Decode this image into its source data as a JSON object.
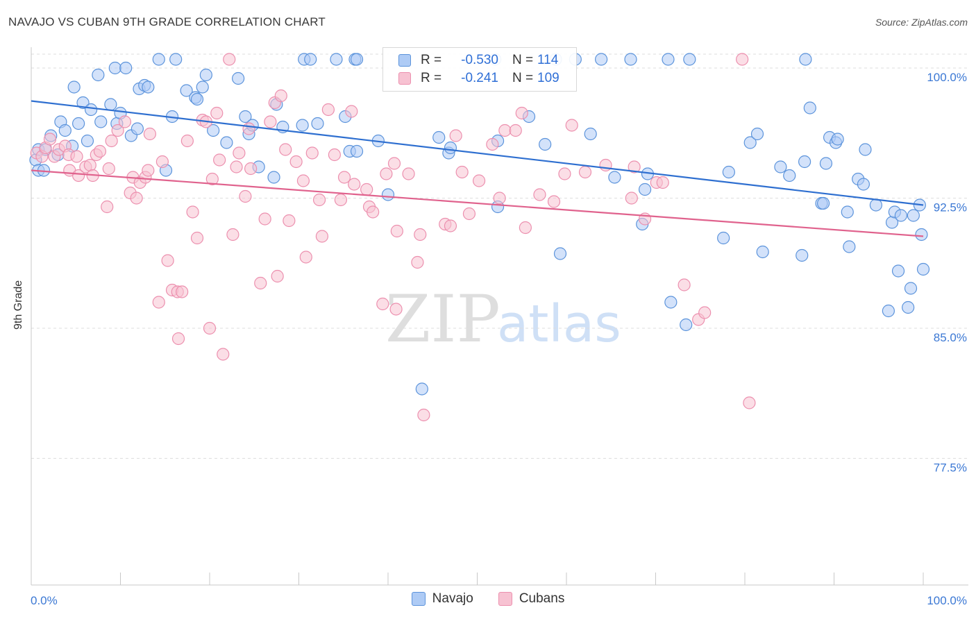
{
  "title": "NAVAJO VS CUBAN 9TH GRADE CORRELATION CHART",
  "source": "Source: ZipAtlas.com",
  "watermark": {
    "zip": "ZIP",
    "atlas": "atlas"
  },
  "colors": {
    "navajo_fill": "#aecbf5",
    "navajo_stroke": "#5b93db",
    "navajo_line": "#2e6fd0",
    "cubans_fill": "#f7c2d2",
    "cubans_stroke": "#ec8fae",
    "cubans_line": "#e0628d",
    "tick_text": "#3b78d4",
    "grid": "#dddddd"
  },
  "legend": {
    "rows": [
      {
        "r_label": "R =",
        "r_value": "-0.530",
        "n_label": "N =",
        "n_value": "114"
      },
      {
        "r_label": "R =",
        "r_value": "-0.241",
        "n_label": "N =",
        "n_value": "109"
      }
    ],
    "bottom": [
      {
        "name": "Navajo"
      },
      {
        "name": "Cubans"
      }
    ]
  },
  "chart_data": {
    "type": "scatter",
    "title": "NAVAJO VS CUBAN 9TH GRADE CORRELATION CHART",
    "xlabel": "",
    "ylabel": "9th Grade",
    "xlim": [
      0,
      100
    ],
    "ylim": [
      70.2,
      101.2
    ],
    "x_tick_labels": [
      "0.0%",
      "100.0%"
    ],
    "y_ticks": [
      100.0,
      92.5,
      85.0,
      77.5
    ],
    "y_tick_labels": [
      "100.0%",
      "92.5%",
      "85.0%",
      "77.5%"
    ],
    "grid": true,
    "series": [
      {
        "name": "Navajo",
        "trend": {
          "x": [
            0,
            100
          ],
          "y": [
            98.1,
            92.1
          ]
        },
        "points": [
          [
            0.5,
            94.7
          ],
          [
            0.8,
            95.3
          ],
          [
            0.8,
            94.1
          ],
          [
            1.4,
            94.1
          ],
          [
            1.6,
            95.3
          ],
          [
            2.2,
            96.1
          ],
          [
            3.0,
            95.0
          ],
          [
            3.3,
            96.9
          ],
          [
            3.8,
            96.4
          ],
          [
            4.6,
            95.5
          ],
          [
            4.8,
            98.9
          ],
          [
            5.3,
            96.8
          ],
          [
            5.8,
            98.0
          ],
          [
            6.3,
            95.8
          ],
          [
            6.7,
            97.6
          ],
          [
            7.5,
            99.6
          ],
          [
            7.8,
            96.9
          ],
          [
            8.9,
            97.9
          ],
          [
            9.4,
            100.0
          ],
          [
            9.6,
            96.8
          ],
          [
            10.0,
            97.4
          ],
          [
            10.6,
            100.0
          ],
          [
            11.2,
            96.1
          ],
          [
            11.9,
            96.5
          ],
          [
            12.1,
            98.8
          ],
          [
            12.7,
            99.0
          ],
          [
            13.1,
            98.9
          ],
          [
            14.3,
            100.5
          ],
          [
            15.1,
            94.1
          ],
          [
            15.8,
            97.2
          ],
          [
            16.2,
            100.5
          ],
          [
            17.4,
            98.7
          ],
          [
            18.4,
            98.3
          ],
          [
            18.6,
            98.2
          ],
          [
            19.2,
            98.9
          ],
          [
            19.6,
            99.6
          ],
          [
            20.4,
            96.4
          ],
          [
            21.9,
            95.7
          ],
          [
            23.2,
            99.4
          ],
          [
            24.0,
            97.2
          ],
          [
            24.4,
            96.2
          ],
          [
            24.8,
            96.7
          ],
          [
            25.5,
            94.3
          ],
          [
            27.2,
            93.7
          ],
          [
            27.5,
            97.9
          ],
          [
            28.2,
            96.6
          ],
          [
            30.4,
            96.7
          ],
          [
            30.6,
            100.5
          ],
          [
            31.3,
            100.5
          ],
          [
            32.1,
            96.8
          ],
          [
            34.2,
            100.5
          ],
          [
            35.2,
            97.2
          ],
          [
            35.7,
            95.2
          ],
          [
            36.3,
            100.5
          ],
          [
            36.5,
            100.5
          ],
          [
            36.5,
            95.2
          ],
          [
            38.9,
            95.8
          ],
          [
            40.0,
            92.7
          ],
          [
            43.8,
            81.5
          ],
          [
            45.7,
            96.0
          ],
          [
            46.8,
            95.1
          ],
          [
            47.0,
            95.4
          ],
          [
            52.0,
            100.5
          ],
          [
            52.3,
            92.0
          ],
          [
            52.3,
            95.8
          ],
          [
            55.8,
            97.2
          ],
          [
            57.6,
            95.6
          ],
          [
            58.8,
            100.5
          ],
          [
            59.3,
            89.3
          ],
          [
            61.0,
            100.5
          ],
          [
            62.7,
            96.2
          ],
          [
            63.9,
            100.5
          ],
          [
            65.4,
            93.7
          ],
          [
            67.2,
            100.5
          ],
          [
            68.5,
            91.0
          ],
          [
            68.8,
            93.0
          ],
          [
            69.1,
            93.9
          ],
          [
            71.4,
            100.5
          ],
          [
            71.7,
            86.5
          ],
          [
            73.4,
            85.2
          ],
          [
            73.8,
            100.5
          ],
          [
            77.6,
            90.2
          ],
          [
            78.2,
            94.0
          ],
          [
            80.6,
            95.7
          ],
          [
            81.4,
            96.2
          ],
          [
            82.0,
            89.4
          ],
          [
            84.0,
            94.3
          ],
          [
            85.0,
            93.8
          ],
          [
            86.4,
            89.2
          ],
          [
            86.7,
            94.6
          ],
          [
            86.8,
            100.5
          ],
          [
            87.3,
            97.7
          ],
          [
            88.6,
            92.2
          ],
          [
            88.8,
            92.2
          ],
          [
            89.1,
            94.5
          ],
          [
            89.5,
            96.0
          ],
          [
            90.2,
            95.7
          ],
          [
            90.4,
            95.9
          ],
          [
            91.5,
            91.7
          ],
          [
            91.7,
            89.7
          ],
          [
            92.7,
            93.6
          ],
          [
            93.3,
            93.3
          ],
          [
            93.5,
            95.3
          ],
          [
            94.7,
            92.1
          ],
          [
            96.1,
            86.0
          ],
          [
            96.5,
            91.1
          ],
          [
            96.8,
            91.7
          ],
          [
            97.2,
            88.3
          ],
          [
            97.5,
            91.5
          ],
          [
            98.3,
            86.2
          ],
          [
            98.6,
            87.3
          ],
          [
            98.9,
            91.5
          ],
          [
            99.6,
            92.1
          ],
          [
            99.8,
            90.4
          ],
          [
            100.0,
            88.4
          ]
        ]
      },
      {
        "name": "Cubans",
        "trend": {
          "x": [
            0,
            100
          ],
          "y": [
            94.1,
            90.3
          ]
        },
        "points": [
          [
            0.6,
            95.1
          ],
          [
            1.2,
            94.9
          ],
          [
            1.6,
            95.4
          ],
          [
            2.1,
            95.9
          ],
          [
            2.6,
            94.9
          ],
          [
            3.1,
            95.3
          ],
          [
            3.8,
            95.5
          ],
          [
            4.2,
            95.0
          ],
          [
            4.3,
            94.1
          ],
          [
            5.1,
            94.9
          ],
          [
            5.3,
            93.8
          ],
          [
            6.1,
            94.3
          ],
          [
            6.6,
            94.4
          ],
          [
            6.9,
            93.8
          ],
          [
            7.3,
            95.0
          ],
          [
            7.7,
            95.2
          ],
          [
            8.5,
            92.0
          ],
          [
            8.7,
            94.2
          ],
          [
            9.0,
            95.8
          ],
          [
            9.7,
            96.4
          ],
          [
            10.5,
            96.9
          ],
          [
            11.1,
            92.8
          ],
          [
            11.4,
            93.7
          ],
          [
            11.8,
            92.5
          ],
          [
            12.2,
            93.4
          ],
          [
            12.8,
            93.7
          ],
          [
            13.1,
            94.1
          ],
          [
            13.3,
            96.2
          ],
          [
            14.3,
            86.5
          ],
          [
            14.7,
            94.6
          ],
          [
            15.3,
            88.9
          ],
          [
            15.8,
            87.2
          ],
          [
            16.4,
            87.1
          ],
          [
            16.5,
            84.4
          ],
          [
            16.9,
            87.1
          ],
          [
            17.5,
            95.8
          ],
          [
            18.1,
            91.7
          ],
          [
            18.6,
            90.2
          ],
          [
            19.2,
            97.0
          ],
          [
            19.6,
            96.9
          ],
          [
            20.0,
            85.0
          ],
          [
            20.3,
            93.6
          ],
          [
            20.8,
            97.4
          ],
          [
            21.1,
            94.7
          ],
          [
            21.5,
            83.5
          ],
          [
            22.2,
            100.5
          ],
          [
            22.6,
            90.4
          ],
          [
            23.0,
            94.3
          ],
          [
            23.3,
            95.1
          ],
          [
            24.0,
            92.6
          ],
          [
            24.4,
            96.5
          ],
          [
            24.6,
            94.2
          ],
          [
            25.7,
            87.6
          ],
          [
            26.2,
            91.3
          ],
          [
            26.8,
            96.9
          ],
          [
            27.3,
            98.0
          ],
          [
            27.6,
            88.0
          ],
          [
            28.0,
            98.4
          ],
          [
            28.5,
            95.3
          ],
          [
            28.9,
            91.2
          ],
          [
            29.7,
            94.6
          ],
          [
            30.5,
            93.5
          ],
          [
            30.8,
            89.1
          ],
          [
            31.5,
            95.1
          ],
          [
            32.3,
            92.4
          ],
          [
            32.6,
            90.3
          ],
          [
            33.3,
            97.6
          ],
          [
            34.0,
            95.0
          ],
          [
            34.7,
            92.4
          ],
          [
            35.1,
            93.7
          ],
          [
            35.9,
            97.5
          ],
          [
            36.2,
            93.3
          ],
          [
            37.6,
            93.0
          ],
          [
            37.9,
            92.0
          ],
          [
            38.3,
            91.7
          ],
          [
            39.4,
            86.4
          ],
          [
            39.8,
            93.9
          ],
          [
            40.7,
            94.5
          ],
          [
            40.9,
            86.1
          ],
          [
            41.0,
            90.6
          ],
          [
            42.3,
            93.9
          ],
          [
            43.3,
            88.8
          ],
          [
            43.6,
            90.4
          ],
          [
            44.0,
            80.0
          ],
          [
            46.4,
            91.0
          ],
          [
            47.0,
            90.9
          ],
          [
            47.6,
            96.1
          ],
          [
            48.3,
            94.0
          ],
          [
            49.1,
            91.6
          ],
          [
            50.2,
            93.5
          ],
          [
            51.7,
            95.6
          ],
          [
            52.5,
            92.5
          ],
          [
            53.1,
            96.4
          ],
          [
            54.3,
            96.4
          ],
          [
            55.0,
            97.4
          ],
          [
            55.4,
            90.8
          ],
          [
            57.0,
            92.7
          ],
          [
            58.6,
            92.3
          ],
          [
            59.8,
            93.9
          ],
          [
            60.6,
            96.7
          ],
          [
            62.1,
            94.0
          ],
          [
            64.4,
            94.4
          ],
          [
            67.3,
            92.5
          ],
          [
            67.6,
            94.3
          ],
          [
            68.8,
            91.3
          ],
          [
            70.1,
            93.4
          ],
          [
            70.8,
            93.4
          ],
          [
            73.2,
            87.5
          ],
          [
            74.8,
            85.5
          ],
          [
            75.5,
            85.9
          ],
          [
            79.7,
            100.5
          ],
          [
            80.5,
            80.7
          ]
        ]
      }
    ]
  }
}
